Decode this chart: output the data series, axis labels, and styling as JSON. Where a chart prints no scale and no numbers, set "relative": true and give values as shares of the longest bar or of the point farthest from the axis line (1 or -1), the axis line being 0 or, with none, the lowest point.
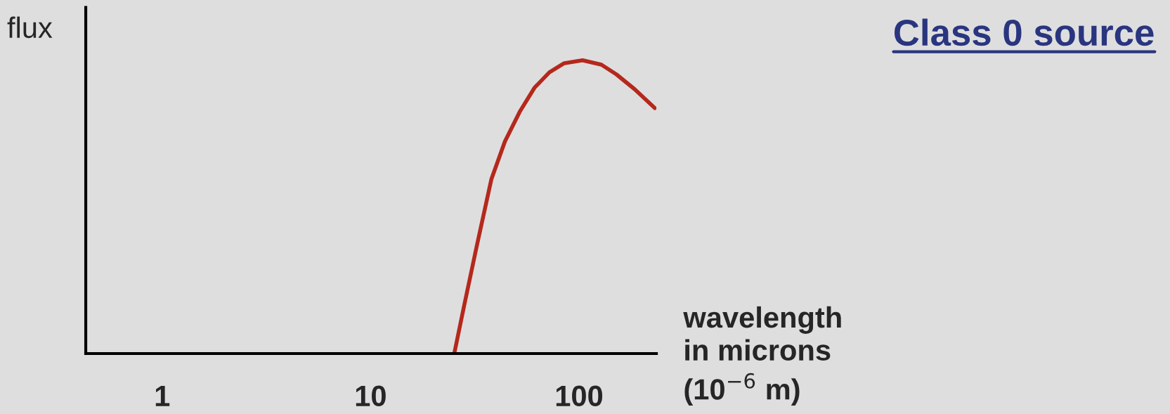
{
  "chart_data": {
    "type": "line",
    "title": "Class 0 source",
    "ylabel": "flux",
    "xlabel": "wavelength\nin microns\n(10$^{−6}$ m)",
    "relative": true,
    "log": "x",
    "xlim": [
      0.43,
      235
    ],
    "xticks": [
      1,
      10,
      100
    ],
    "x": [
      25.2,
      28.1,
      32.3,
      38.0,
      44.1,
      51.9,
      61.1,
      72.1,
      84.9,
      104,
      128,
      151,
      185,
      231
    ],
    "series": [
      {
        "color": "#b5281c",
        "values": [
          0,
          0.163,
          0.366,
          0.595,
          0.723,
          0.824,
          0.906,
          0.959,
          0.99,
          1.0,
          0.985,
          0.952,
          0.901,
          0.837
        ]
      }
    ],
    "grid": false,
    "legend": false,
    "marker": "none",
    "line_style": "solid"
  }
}
